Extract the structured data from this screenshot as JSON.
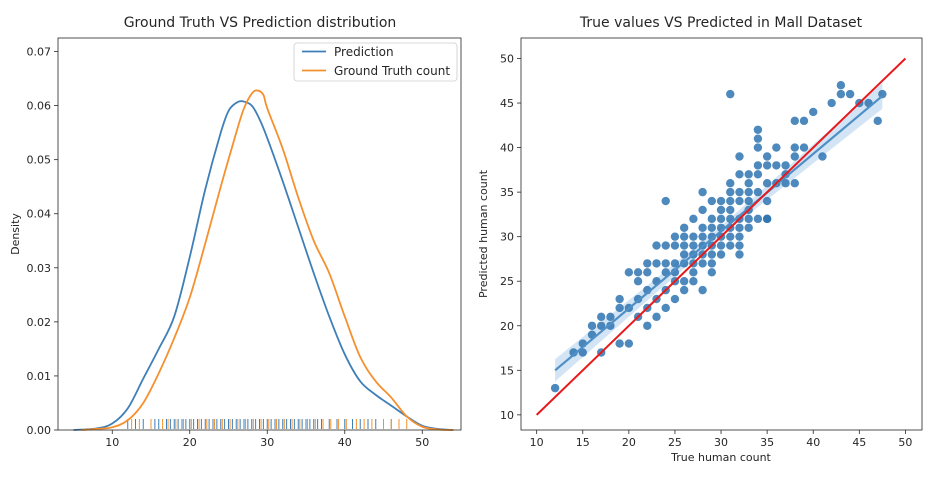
{
  "chart_data": [
    {
      "type": "line",
      "title": "Ground Truth VS Prediction distribution",
      "xlabel": "",
      "ylabel": "Density",
      "xlim": [
        3,
        55
      ],
      "ylim": [
        0,
        0.0725
      ],
      "xticks": [
        10,
        20,
        30,
        40,
        50
      ],
      "yticks": [
        0.0,
        0.01,
        0.02,
        0.03,
        0.04,
        0.05,
        0.06,
        0.07
      ],
      "yticklabels": [
        "0.00",
        "0.01",
        "0.02",
        "0.03",
        "0.04",
        "0.05",
        "0.06",
        "0.07"
      ],
      "grid": false,
      "legend_position": "top-right",
      "series": [
        {
          "name": "Prediction",
          "color": "#3f7fb8",
          "x": [
            5,
            8,
            10,
            12,
            14,
            16,
            18,
            20,
            22,
            24,
            25,
            26,
            26.8,
            28,
            29,
            30,
            32,
            34,
            36,
            38,
            40,
            42,
            44,
            46,
            48,
            50,
            52,
            54
          ],
          "y": [
            0.0,
            0.0003,
            0.0012,
            0.004,
            0.0095,
            0.015,
            0.021,
            0.032,
            0.0445,
            0.055,
            0.059,
            0.0605,
            0.0608,
            0.06,
            0.0575,
            0.054,
            0.046,
            0.0375,
            0.029,
            0.021,
            0.014,
            0.009,
            0.0065,
            0.0045,
            0.0025,
            0.0008,
            0.0002,
            0.0
          ]
        },
        {
          "name": "Ground Truth count",
          "color": "#f5902f",
          "x": [
            6,
            8,
            10,
            12,
            14,
            16,
            18,
            20,
            22,
            24,
            26,
            27,
            28,
            28.7,
            29.5,
            30,
            32,
            34,
            36,
            38,
            40,
            42,
            44,
            46,
            48,
            50,
            52,
            54
          ],
          "y": [
            0.0,
            0.0002,
            0.0005,
            0.0018,
            0.005,
            0.0105,
            0.017,
            0.0245,
            0.0345,
            0.045,
            0.055,
            0.0595,
            0.0622,
            0.0628,
            0.062,
            0.0595,
            0.052,
            0.043,
            0.035,
            0.029,
            0.021,
            0.0135,
            0.009,
            0.006,
            0.0025,
            0.0006,
            0.0001,
            0.0
          ]
        }
      ],
      "rug": {
        "prediction": [
          12,
          13,
          14,
          15,
          15.5,
          16,
          17,
          17.5,
          18,
          18.5,
          19,
          19.5,
          20,
          20.5,
          21,
          21.5,
          22,
          22.5,
          23,
          23.5,
          24,
          24.5,
          25,
          25.5,
          26,
          26.5,
          27,
          27.5,
          28,
          28.5,
          29,
          29.5,
          30,
          30.5,
          31,
          31.5,
          32,
          32.5,
          33,
          33.5,
          34,
          34.5,
          35,
          35.5,
          36,
          36.5,
          37,
          38,
          39,
          40,
          41,
          42,
          43,
          44,
          45,
          46,
          47
        ],
        "truth": [
          12.5,
          13.5,
          15,
          16.5,
          17.2,
          18.2,
          19.2,
          20.2,
          21.2,
          22.2,
          23.2,
          24.2,
          25.2,
          26.2,
          27.2,
          28.2,
          29.2,
          30.2,
          31.2,
          32.2,
          33.2,
          34.2,
          35.2,
          36.2,
          37.2,
          38.2,
          39.2,
          40.2,
          41.5,
          42.5,
          43.5,
          45,
          46,
          47,
          48
        ]
      }
    },
    {
      "type": "scatter",
      "title": "True values VS Predicted in Mall Dataset",
      "xlabel": "True human count",
      "ylabel": "Predicted human count",
      "xlim": [
        8.3,
        51.8
      ],
      "ylim": [
        8.3,
        52.3
      ],
      "xticks": [
        10,
        15,
        20,
        25,
        30,
        35,
        40,
        45,
        50
      ],
      "yticks": [
        10,
        15,
        20,
        25,
        30,
        35,
        40,
        45,
        50
      ],
      "grid": false,
      "point_color": "#2e74b0",
      "regression_color": "#4f8fc6",
      "identity_color": "#e8191b",
      "regression_line": {
        "x": [
          12,
          47.5
        ],
        "y": [
          15,
          45.8
        ]
      },
      "identity_line": {
        "x": [
          10,
          50
        ],
        "y": [
          10,
          50
        ]
      },
      "points": [
        [
          12,
          13
        ],
        [
          14,
          17
        ],
        [
          15,
          18
        ],
        [
          15,
          17
        ],
        [
          16,
          19
        ],
        [
          16,
          20
        ],
        [
          17,
          17
        ],
        [
          17,
          21
        ],
        [
          17,
          20
        ],
        [
          18,
          20
        ],
        [
          18,
          21
        ],
        [
          19,
          18
        ],
        [
          19,
          23
        ],
        [
          19,
          22
        ],
        [
          20,
          18
        ],
        [
          20,
          22
        ],
        [
          20,
          26
        ],
        [
          21,
          21
        ],
        [
          21,
          23
        ],
        [
          21,
          26
        ],
        [
          21,
          25
        ],
        [
          22,
          24
        ],
        [
          22,
          22
        ],
        [
          22,
          20
        ],
        [
          22,
          27
        ],
        [
          22,
          26
        ],
        [
          23,
          21
        ],
        [
          23,
          23
        ],
        [
          23,
          25
        ],
        [
          23,
          27
        ],
        [
          23,
          29
        ],
        [
          24,
          22
        ],
        [
          24,
          24
        ],
        [
          24,
          27
        ],
        [
          24,
          29
        ],
        [
          24,
          34
        ],
        [
          24,
          26
        ],
        [
          25,
          23
        ],
        [
          25,
          25
        ],
        [
          25,
          27
        ],
        [
          25,
          29
        ],
        [
          25,
          30
        ],
        [
          25,
          26
        ],
        [
          26,
          25
        ],
        [
          26,
          27
        ],
        [
          26,
          28
        ],
        [
          26,
          30
        ],
        [
          26,
          31
        ],
        [
          26,
          29
        ],
        [
          26,
          24
        ],
        [
          27,
          26
        ],
        [
          27,
          28
        ],
        [
          27,
          29
        ],
        [
          27,
          30
        ],
        [
          27,
          32
        ],
        [
          27,
          25
        ],
        [
          27,
          27
        ],
        [
          28,
          24
        ],
        [
          28,
          27
        ],
        [
          28,
          29
        ],
        [
          28,
          30
        ],
        [
          28,
          31
        ],
        [
          28,
          33
        ],
        [
          28,
          35
        ],
        [
          28,
          28
        ],
        [
          29,
          27
        ],
        [
          29,
          29
        ],
        [
          29,
          30
        ],
        [
          29,
          31
        ],
        [
          29,
          32
        ],
        [
          29,
          34
        ],
        [
          29,
          28
        ],
        [
          29,
          26
        ],
        [
          30,
          28
        ],
        [
          30,
          29
        ],
        [
          30,
          30
        ],
        [
          30,
          31
        ],
        [
          30,
          33
        ],
        [
          30,
          34
        ],
        [
          30,
          32
        ],
        [
          31,
          46
        ],
        [
          31,
          29
        ],
        [
          31,
          31
        ],
        [
          31,
          33
        ],
        [
          31,
          35
        ],
        [
          31,
          36
        ],
        [
          31,
          30
        ],
        [
          31,
          32
        ],
        [
          31,
          34
        ],
        [
          32,
          30
        ],
        [
          32,
          32
        ],
        [
          32,
          34
        ],
        [
          32,
          35
        ],
        [
          32,
          37
        ],
        [
          32,
          39
        ],
        [
          32,
          28
        ],
        [
          32,
          29
        ],
        [
          32,
          31
        ],
        [
          33,
          32
        ],
        [
          33,
          33
        ],
        [
          33,
          35
        ],
        [
          33,
          37
        ],
        [
          33,
          36
        ],
        [
          33,
          34
        ],
        [
          33,
          31
        ],
        [
          34,
          32
        ],
        [
          34,
          35
        ],
        [
          34,
          37
        ],
        [
          34,
          38
        ],
        [
          34,
          40
        ],
        [
          34,
          41
        ],
        [
          34,
          42
        ],
        [
          35,
          32
        ],
        [
          35,
          34
        ],
        [
          35,
          36
        ],
        [
          35,
          38
        ],
        [
          35,
          39
        ],
        [
          35,
          32
        ],
        [
          36,
          36
        ],
        [
          36,
          38
        ],
        [
          36,
          40
        ],
        [
          37,
          36
        ],
        [
          37,
          37
        ],
        [
          37,
          38
        ],
        [
          38,
          36
        ],
        [
          38,
          40
        ],
        [
          38,
          43
        ],
        [
          38,
          39
        ],
        [
          39,
          40
        ],
        [
          39,
          43
        ],
        [
          40,
          44
        ],
        [
          41,
          39
        ],
        [
          42,
          45
        ],
        [
          43,
          47
        ],
        [
          43,
          46
        ],
        [
          44,
          46
        ],
        [
          45,
          45
        ],
        [
          46,
          45
        ],
        [
          47,
          43
        ],
        [
          47.5,
          46
        ]
      ]
    }
  ]
}
